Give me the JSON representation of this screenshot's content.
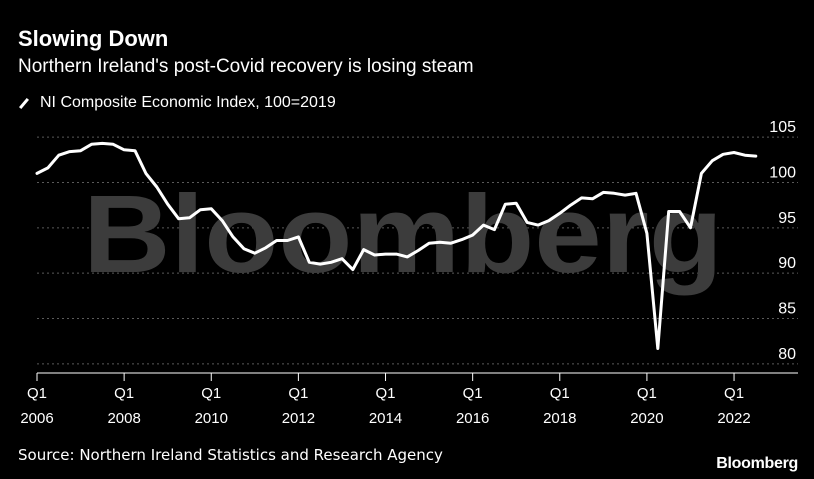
{
  "title": "Slowing Down",
  "subtitle": "Northern Ireland's post-Covid recovery is losing steam",
  "legend": {
    "label": "NI Composite Economic Index, 100=2019"
  },
  "source": "Source: Northern Ireland Statistics and Research Agency",
  "brand": "Bloomberg",
  "watermark": "Bloomberg",
  "colors": {
    "background": "#000000",
    "line": "#ffffff",
    "grid": "#5a5a5a",
    "watermark": "#3c3c3c"
  },
  "chart_data": {
    "type": "line",
    "title": "Slowing Down",
    "xlabel": "",
    "ylabel": "",
    "ylim": [
      79,
      106
    ],
    "yticks": [
      80,
      85,
      90,
      95,
      100,
      105
    ],
    "xticks": [
      {
        "q": "Q1",
        "year": "2006",
        "x": 2006.0
      },
      {
        "q": "Q1",
        "year": "2008",
        "x": 2008.0
      },
      {
        "q": "Q1",
        "year": "2010",
        "x": 2010.0
      },
      {
        "q": "Q1",
        "year": "2012",
        "x": 2012.0
      },
      {
        "q": "Q1",
        "year": "2014",
        "x": 2014.0
      },
      {
        "q": "Q1",
        "year": "2016",
        "x": 2016.0
      },
      {
        "q": "Q1",
        "year": "2018",
        "x": 2018.0
      },
      {
        "q": "Q1",
        "year": "2020",
        "x": 2020.0
      },
      {
        "q": "Q1",
        "year": "2022",
        "x": 2022.0
      }
    ],
    "grid": true,
    "legend_position": "top-left",
    "series": [
      {
        "name": "NI Composite Economic Index, 100=2019",
        "x": [
          2006.0,
          2006.25,
          2006.5,
          2006.75,
          2007.0,
          2007.25,
          2007.5,
          2007.75,
          2008.0,
          2008.25,
          2008.5,
          2008.75,
          2009.0,
          2009.25,
          2009.5,
          2009.75,
          2010.0,
          2010.25,
          2010.5,
          2010.75,
          2011.0,
          2011.25,
          2011.5,
          2011.75,
          2012.0,
          2012.25,
          2012.5,
          2012.75,
          2013.0,
          2013.25,
          2013.5,
          2013.75,
          2014.0,
          2014.25,
          2014.5,
          2014.75,
          2015.0,
          2015.25,
          2015.5,
          2015.75,
          2016.0,
          2016.25,
          2016.5,
          2016.75,
          2017.0,
          2017.25,
          2017.5,
          2017.75,
          2018.0,
          2018.25,
          2018.5,
          2018.75,
          2019.0,
          2019.25,
          2019.5,
          2019.75,
          2020.0,
          2020.25,
          2020.5,
          2020.75,
          2021.0,
          2021.25,
          2021.5,
          2021.75,
          2022.0,
          2022.25,
          2022.5
        ],
        "values": [
          101.0,
          101.6,
          103.0,
          103.4,
          103.5,
          104.2,
          104.3,
          104.2,
          103.6,
          103.5,
          101.0,
          99.5,
          97.6,
          96.0,
          96.1,
          97.0,
          97.1,
          95.8,
          94.0,
          92.7,
          92.2,
          92.8,
          93.6,
          93.6,
          94.0,
          91.2,
          91.0,
          91.2,
          91.6,
          90.4,
          92.6,
          92.0,
          92.1,
          92.1,
          91.8,
          92.5,
          93.3,
          93.4,
          93.3,
          93.7,
          94.2,
          95.3,
          94.8,
          97.6,
          97.7,
          95.6,
          95.3,
          95.8,
          96.6,
          97.5,
          98.3,
          98.2,
          98.9,
          98.8,
          98.6,
          98.8,
          94.4,
          81.7,
          96.8,
          96.8,
          95.0,
          101.0,
          102.4,
          103.1,
          103.3,
          103.0,
          102.9
        ]
      }
    ]
  }
}
